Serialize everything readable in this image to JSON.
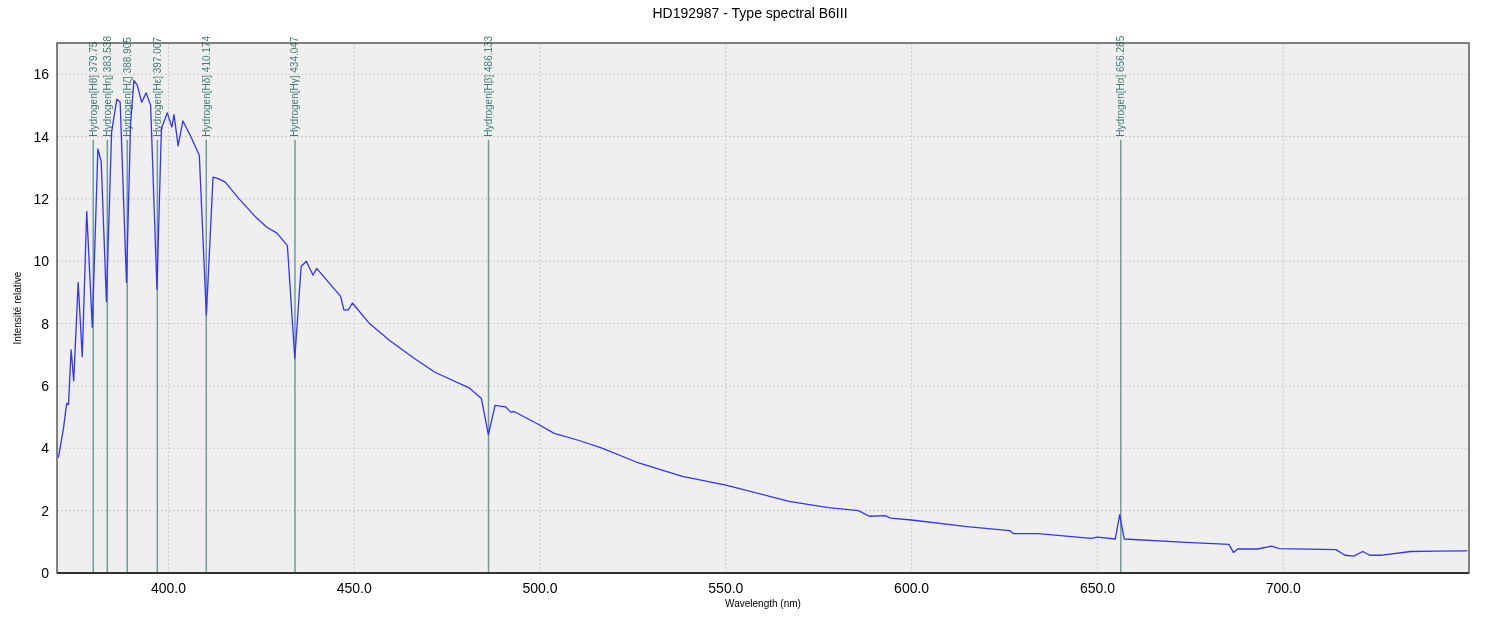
{
  "chart_data": {
    "type": "line",
    "title": "HD192987 - Type spectral B6III",
    "xlabel": "Wavelength (nm)",
    "ylabel": "Intensité relative",
    "xlim": [
      370,
      750
    ],
    "ylim": [
      0,
      17
    ],
    "xticks": [
      {
        "value": 400,
        "label": "400.0"
      },
      {
        "value": 450,
        "label": "450.0"
      },
      {
        "value": 500,
        "label": "500.0"
      },
      {
        "value": 550,
        "label": "550.0"
      },
      {
        "value": 600,
        "label": "600.0"
      },
      {
        "value": 650,
        "label": "650.0"
      },
      {
        "value": 700,
        "label": "700.0"
      }
    ],
    "yticks": [
      0,
      2,
      4,
      6,
      8,
      10,
      12,
      14,
      16
    ],
    "grid": true,
    "marker": "none",
    "line_style": "solid",
    "series": [
      {
        "color": "#3333ff",
        "x": [
          370.4,
          371.7,
          372.6,
          373.1,
          373.8,
          374.5,
          375.7,
          376.8,
          378.0,
          379.5,
          381.0,
          381.9,
          383.3,
          384.7,
          386.1,
          387.0,
          388.7,
          389.8,
          390.7,
          391.6,
          392.8,
          394.0,
          395.2,
          396.9,
          398.1,
          399.7,
          400.9,
          401.5,
          402.6,
          403.9,
          406.0,
          408.3,
          410.2,
          412.0,
          413.4,
          415.3,
          419.0,
          423.6,
          426.4,
          429.2,
          432.0,
          434.0,
          435.7,
          437.1,
          438.9,
          439.9,
          443.1,
          446.3,
          447.2,
          448.4,
          449.5,
          454.1,
          459.7,
          466.2,
          471.7,
          480.9,
          484.2,
          486.1,
          487.9,
          490.7,
          492.1,
          493.0,
          499.5,
          503.8,
          510.5,
          516.3,
          525.9,
          538.3,
          550,
          567.0,
          577.6,
          585.7,
          588.6,
          592.9,
          594.3,
          600,
          614.9,
          626.4,
          627.4,
          634.1,
          644.6,
          648.4,
          650,
          654.8,
          656.0,
          657.2,
          673.9,
          685.4,
          686.6,
          687.8,
          693.1,
          696.9,
          698.9,
          714.2,
          716.6,
          719.0,
          721.4,
          723.3,
          726.6,
          734.3,
          741.0,
          749.4
        ],
        "values": [
          3.72,
          4.6,
          5.44,
          5.4,
          7.16,
          6.16,
          9.32,
          6.94,
          11.6,
          7.88,
          13.6,
          13.2,
          8.71,
          14.15,
          15.2,
          15.1,
          9.32,
          14.4,
          15.8,
          15.65,
          15.1,
          15.4,
          15.0,
          9.1,
          14.26,
          14.76,
          14.3,
          14.7,
          13.7,
          14.5,
          14.0,
          13.4,
          8.27,
          12.7,
          12.65,
          12.54,
          12.0,
          11.4,
          11.1,
          10.9,
          10.5,
          6.88,
          9.83,
          10.0,
          9.55,
          9.77,
          9.32,
          8.88,
          8.44,
          8.44,
          8.66,
          8.0,
          7.44,
          6.88,
          6.44,
          5.94,
          5.6,
          4.44,
          5.38,
          5.33,
          5.16,
          5.18,
          4.77,
          4.48,
          4.25,
          4.02,
          3.56,
          3.1,
          2.82,
          2.3,
          2.1,
          2.0,
          1.82,
          1.84,
          1.76,
          1.7,
          1.49,
          1.36,
          1.26,
          1.26,
          1.15,
          1.11,
          1.15,
          1.09,
          1.87,
          1.09,
          0.98,
          0.92,
          0.66,
          0.77,
          0.77,
          0.86,
          0.78,
          0.75,
          0.57,
          0.54,
          0.69,
          0.57,
          0.57,
          0.69,
          0.7,
          0.71
        ]
      }
    ],
    "ref_lines": [
      {
        "axis": "x",
        "value": 379.75,
        "label": "Hydrogen[Hθ] 379.75",
        "color": "#6f9e98"
      },
      {
        "axis": "x",
        "value": 383.538,
        "label": "Hydrogen[Hη] 383.538",
        "color": "#6f9e98"
      },
      {
        "axis": "x",
        "value": 388.905,
        "label": "Hydrogen[Hζ] 388.905",
        "color": "#6f9e98"
      },
      {
        "axis": "x",
        "value": 397.007,
        "label": "Hydrogen[Hε] 397.007",
        "color": "#6f9e98"
      },
      {
        "axis": "x",
        "value": 410.174,
        "label": "Hydrogen[Hδ] 410.174",
        "color": "#6f9e98"
      },
      {
        "axis": "x",
        "value": 434.047,
        "label": "Hydrogen[Hγ] 434.047",
        "color": "#6f9e98"
      },
      {
        "axis": "x",
        "value": 486.133,
        "label": "Hydrogen[Hβ] 486.133",
        "color": "#6f9e98"
      },
      {
        "axis": "x",
        "value": 656.285,
        "label": "Hydrogen[Hα] 656.285",
        "color": "#6f9e98"
      }
    ]
  }
}
